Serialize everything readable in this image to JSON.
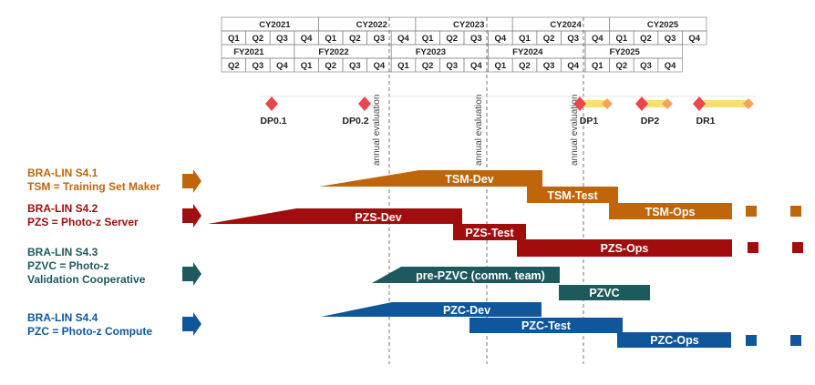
{
  "calendar": {
    "cy_years": [
      "CY2021",
      "CY2022",
      "CY2023",
      "CY2024",
      "CY2025"
    ],
    "fy_years": [
      "FY2021",
      "FY2022",
      "FY2023",
      "FY2024",
      "FY2025"
    ],
    "cy_quarters": [
      "Q1",
      "Q2",
      "Q3",
      "Q4",
      "Q1",
      "Q2",
      "Q3",
      "Q4",
      "Q1",
      "Q2",
      "Q3",
      "Q4",
      "Q1",
      "Q2",
      "Q3",
      "Q4",
      "Q1",
      "Q2",
      "Q3",
      "Q4"
    ],
    "fy_quarters": [
      "Q2",
      "Q3",
      "Q4",
      "Q1",
      "Q2",
      "Q3",
      "Q4",
      "Q1",
      "Q2",
      "Q3",
      "Q4",
      "Q1",
      "Q2",
      "Q3",
      "Q4",
      "Q1",
      "Q2",
      "Q3",
      "Q4"
    ]
  },
  "annual_evaluation_label": "annual evaluation",
  "milestones": [
    "DP0.1",
    "DP0.2",
    "DP1",
    "DP2",
    "DR1"
  ],
  "colors": {
    "tsm": "#c0650a",
    "pzs": "#a10d0d",
    "pzvc": "#1d5a5e",
    "pzc": "#0f579a",
    "milestone": "#e8474d",
    "milestone_light": "#f5a25d",
    "milestone_bar": "#f7e06e"
  },
  "teams": [
    {
      "id": "tsm",
      "line1": "BRA-LIN S4.1",
      "line2": "TSM = Training Set Maker",
      "line3": ""
    },
    {
      "id": "pzs",
      "line1": "BRA-LIN S4.2",
      "line2": "PZS = Photo-z Server",
      "line3": ""
    },
    {
      "id": "pzvc",
      "line1": "BRA-LIN S4.3",
      "line2": "PZVC = Photo-z",
      "line3": "Validation Cooperative"
    },
    {
      "id": "pzc",
      "line1": "BRA-LIN S4.4",
      "line2": "PZC = Photo-z Compute",
      "line3": ""
    }
  ],
  "bars": {
    "tsm_dev": "TSM-Dev",
    "tsm_test": "TSM-Test",
    "tsm_ops": "TSM-Ops",
    "pzs_dev": "PZS-Dev",
    "pzs_test": "PZS-Test",
    "pzs_ops": "PZS-Ops",
    "pzvc_pre": "pre-PZVC (comm. team)",
    "pzvc": "PZVC",
    "pzc_dev": "PZC-Dev",
    "pzc_test": "PZC-Test",
    "pzc_ops": "PZC-Ops"
  }
}
